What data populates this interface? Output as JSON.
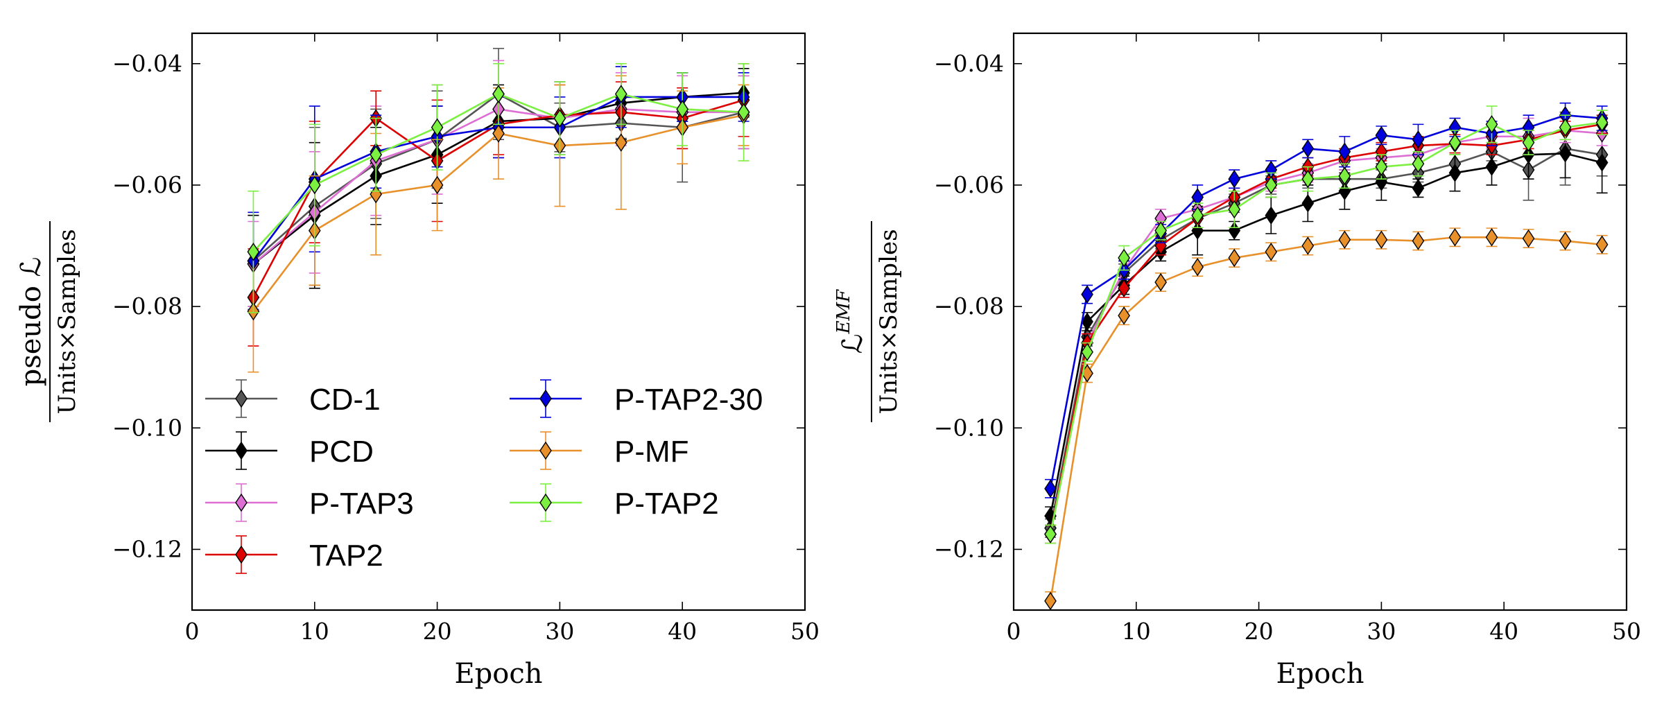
{
  "chart_data": [
    {
      "type": "line",
      "xlabel": "Epoch",
      "ylabel": {
        "numerator": "pseudo ℒ",
        "denominator": "Units×Samples"
      },
      "xlim": [
        0,
        50
      ],
      "ylim": [
        -0.13,
        -0.035
      ],
      "xticks": [
        0,
        10,
        20,
        30,
        40,
        50
      ],
      "yticks": [
        -0.04,
        -0.06,
        -0.08,
        -0.1,
        -0.12
      ],
      "xtick_labels": [
        "0",
        "10",
        "20",
        "30",
        "40",
        "50"
      ],
      "ytick_labels": [
        "−0.04",
        "−0.06",
        "−0.08",
        "−0.10",
        "−0.12"
      ],
      "grid": false,
      "legend": "lower-left",
      "x": [
        5,
        10,
        15,
        20,
        25,
        30,
        35,
        40,
        45
      ],
      "series": [
        {
          "name": "CD-1",
          "color": "#555555",
          "values": [
            -0.0725,
            -0.0635,
            -0.0565,
            -0.0525,
            -0.045,
            -0.0505,
            -0.0498,
            -0.0505,
            -0.048
          ],
          "errors": [
            0.0075,
            0.013,
            0.009,
            0.008,
            0.0075,
            0.004,
            0.0025,
            0.009,
            0.006
          ]
        },
        {
          "name": "PCD",
          "color": "#000000",
          "values": [
            -0.073,
            -0.065,
            -0.0585,
            -0.055,
            -0.0495,
            -0.049,
            -0.0465,
            -0.0455,
            -0.0448
          ],
          "errors": [
            0.008,
            0.012,
            0.008,
            0.008,
            0.006,
            0.006,
            0.006,
            0.004,
            0.004
          ]
        },
        {
          "name": "P-TAP3",
          "color": "#dd6ed4",
          "values": [
            -0.073,
            -0.0645,
            -0.056,
            -0.0525,
            -0.0475,
            -0.049,
            -0.0475,
            -0.048,
            -0.048
          ],
          "errors": [
            0.007,
            0.01,
            0.009,
            0.009,
            0.008,
            0.006,
            0.006,
            0.006,
            0.006
          ]
        },
        {
          "name": "TAP2",
          "color": "#dd0000",
          "values": [
            -0.0785,
            -0.0595,
            -0.049,
            -0.056,
            -0.05,
            -0.0485,
            -0.048,
            -0.049,
            -0.046
          ],
          "errors": [
            0.008,
            0.01,
            0.0045,
            0.01,
            0.005,
            0.005,
            0.005,
            0.005,
            0.006
          ]
        },
        {
          "name": "P-TAP2-30",
          "color": "#0000dd",
          "values": [
            -0.0725,
            -0.059,
            -0.0545,
            -0.052,
            -0.0505,
            -0.0505,
            -0.0455,
            -0.0455,
            -0.0455
          ],
          "errors": [
            0.008,
            0.012,
            0.006,
            0.005,
            0.005,
            0.005,
            0.005,
            0.004,
            0.004
          ]
        },
        {
          "name": "P-MF",
          "color": "#e8902a",
          "values": [
            -0.0808,
            -0.0675,
            -0.0615,
            -0.06,
            -0.0515,
            -0.0535,
            -0.053,
            -0.0505,
            -0.0485
          ],
          "errors": [
            0.01,
            0.009,
            0.01,
            0.0075,
            0.0075,
            0.01,
            0.011,
            0.006,
            0.005
          ]
        },
        {
          "name": "P-TAP2",
          "color": "#7cf040",
          "values": [
            -0.071,
            -0.06,
            -0.055,
            -0.0505,
            -0.045,
            -0.049,
            -0.045,
            -0.0475,
            -0.048
          ],
          "errors": [
            0.01,
            0.01,
            0.006,
            0.007,
            0.005,
            0.006,
            0.005,
            0.006,
            0.008
          ]
        }
      ]
    },
    {
      "type": "line",
      "xlabel": "Epoch",
      "ylabel": {
        "numerator": "ℒ",
        "superscript": "EMF",
        "denominator": "Units×Samples"
      },
      "xlim": [
        0,
        50
      ],
      "ylim": [
        -0.13,
        -0.035
      ],
      "xticks": [
        0,
        10,
        20,
        30,
        40,
        50
      ],
      "yticks": [
        -0.04,
        -0.06,
        -0.08,
        -0.1,
        -0.12
      ],
      "xtick_labels": [
        "0",
        "10",
        "20",
        "30",
        "40",
        "50"
      ],
      "ytick_labels": [
        "−0.04",
        "−0.06",
        "−0.08",
        "−0.10",
        "−0.12"
      ],
      "grid": false,
      "x": [
        3,
        6,
        9,
        12,
        15,
        18,
        21,
        24,
        27,
        30,
        33,
        36,
        39,
        42,
        45,
        48
      ],
      "series": [
        {
          "name": "CD-1",
          "color": "#555555",
          "values": [
            -0.1165,
            -0.085,
            -0.0745,
            -0.069,
            -0.0655,
            -0.063,
            -0.06,
            -0.059,
            -0.059,
            -0.059,
            -0.058,
            -0.0565,
            -0.0545,
            -0.0575,
            -0.054,
            -0.055
          ],
          "errors": [
            0.0015,
            0.0015,
            0.0015,
            0.0015,
            0.0015,
            0.0015,
            0.0015,
            0.0015,
            0.0015,
            0.0015,
            0.0015,
            0.0015,
            0.0015,
            0.005,
            0.006,
            0.0035
          ]
        },
        {
          "name": "PCD",
          "color": "#000000",
          "values": [
            -0.1145,
            -0.0825,
            -0.0765,
            -0.071,
            -0.0675,
            -0.0675,
            -0.065,
            -0.063,
            -0.061,
            -0.0595,
            -0.0605,
            -0.058,
            -0.057,
            -0.055,
            -0.0548,
            -0.0563
          ],
          "errors": [
            0.0015,
            0.0015,
            0.0015,
            0.0015,
            0.004,
            0.0015,
            0.003,
            0.003,
            0.003,
            0.003,
            0.0015,
            0.003,
            0.003,
            0.004,
            0.004,
            0.005
          ]
        },
        {
          "name": "P-TAP3",
          "color": "#dd6ed4",
          "values": [
            -0.1175,
            -0.086,
            -0.074,
            -0.0655,
            -0.064,
            -0.062,
            -0.0595,
            -0.058,
            -0.056,
            -0.0555,
            -0.055,
            -0.053,
            -0.052,
            -0.052,
            -0.051,
            -0.0515
          ],
          "errors": [
            0.0015,
            0.0015,
            0.0015,
            0.0015,
            0.0015,
            0.0015,
            0.0015,
            0.0015,
            0.0015,
            0.0015,
            0.0015,
            0.002,
            0.002,
            0.003,
            0.002,
            0.002
          ]
        },
        {
          "name": "TAP2",
          "color": "#dd0000",
          "values": [
            -0.1175,
            -0.086,
            -0.077,
            -0.07,
            -0.0655,
            -0.062,
            -0.059,
            -0.057,
            -0.0555,
            -0.0545,
            -0.0535,
            -0.0532,
            -0.0535,
            -0.0525,
            -0.051,
            -0.05
          ],
          "errors": [
            0.0015,
            0.0015,
            0.0015,
            0.0015,
            0.0015,
            0.0015,
            0.0015,
            0.0015,
            0.0015,
            0.0015,
            0.0015,
            0.0015,
            0.0015,
            0.0015,
            0.0015,
            0.0015
          ]
        },
        {
          "name": "P-TAP2-30",
          "color": "#0000dd",
          "values": [
            -0.11,
            -0.078,
            -0.074,
            -0.068,
            -0.062,
            -0.059,
            -0.0575,
            -0.054,
            -0.0545,
            -0.0518,
            -0.0525,
            -0.0505,
            -0.0515,
            -0.0505,
            -0.0485,
            -0.049
          ],
          "errors": [
            0.0015,
            0.0015,
            0.0015,
            0.0015,
            0.002,
            0.0015,
            0.0015,
            0.0015,
            0.0025,
            0.0015,
            0.0025,
            0.0015,
            0.002,
            0.002,
            0.002,
            0.002
          ]
        },
        {
          "name": "P-MF",
          "color": "#e8902a",
          "values": [
            -0.1285,
            -0.091,
            -0.0815,
            -0.076,
            -0.0735,
            -0.072,
            -0.071,
            -0.07,
            -0.069,
            -0.069,
            -0.0692,
            -0.0686,
            -0.0686,
            -0.0688,
            -0.0692,
            -0.0698
          ],
          "errors": [
            0.0015,
            0.0015,
            0.0015,
            0.0015,
            0.0015,
            0.0015,
            0.0015,
            0.0015,
            0.0015,
            0.0015,
            0.0015,
            0.0015,
            0.0015,
            0.0015,
            0.0015,
            0.0015
          ]
        },
        {
          "name": "P-TAP2",
          "color": "#7cf040",
          "values": [
            -0.1175,
            -0.0875,
            -0.072,
            -0.0675,
            -0.065,
            -0.064,
            -0.06,
            -0.059,
            -0.0585,
            -0.057,
            -0.0565,
            -0.053,
            -0.05,
            -0.053,
            -0.0505,
            -0.0497
          ],
          "errors": [
            0.0015,
            0.0015,
            0.002,
            0.0015,
            0.002,
            0.003,
            0.002,
            0.002,
            0.002,
            0.002,
            0.002,
            0.002,
            0.003,
            0.002,
            0.002,
            0.002
          ]
        }
      ]
    }
  ]
}
